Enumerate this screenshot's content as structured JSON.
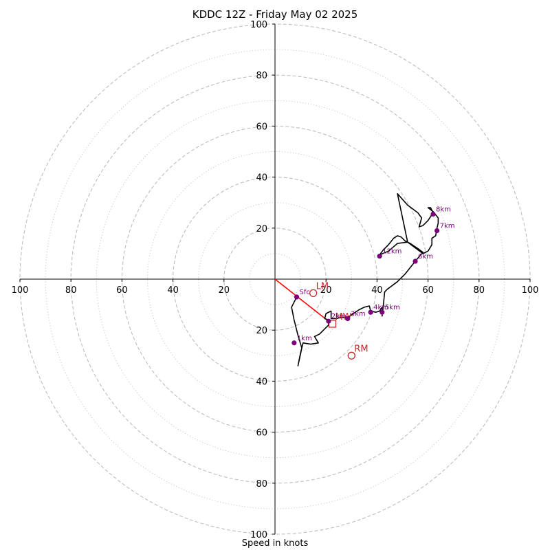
{
  "chart_data": {
    "type": "hodograph",
    "title": "KDDC 12Z - Friday May 02 2025",
    "xlabel": "Speed in knots",
    "xlim": [
      -100,
      100
    ],
    "ylim": [
      -100,
      100
    ],
    "rings_major": [
      20,
      40,
      60,
      80,
      100
    ],
    "rings_minor": [
      10,
      30,
      50,
      70,
      90
    ],
    "x_ticks": [
      {
        "v": -100,
        "label": "100"
      },
      {
        "v": -80,
        "label": "80"
      },
      {
        "v": -60,
        "label": "60"
      },
      {
        "v": -40,
        "label": "40"
      },
      {
        "v": -20,
        "label": "20"
      },
      {
        "v": 20,
        "label": "20"
      },
      {
        "v": 40,
        "label": "40"
      },
      {
        "v": 60,
        "label": "60"
      },
      {
        "v": 80,
        "label": "80"
      },
      {
        "v": 100,
        "label": "100"
      }
    ],
    "y_ticks": [
      {
        "v": 100,
        "label": "100"
      },
      {
        "v": 80,
        "label": "80"
      },
      {
        "v": 60,
        "label": "60"
      },
      {
        "v": 40,
        "label": "40"
      },
      {
        "v": 20,
        "label": "20"
      },
      {
        "v": -20,
        "label": "20"
      },
      {
        "v": -40,
        "label": "40"
      },
      {
        "v": -60,
        "label": "60"
      },
      {
        "v": -80,
        "label": "80"
      },
      {
        "v": -100,
        "label": "100"
      }
    ],
    "trace": [
      [
        8.5,
        -7
      ],
      [
        6.5,
        -11
      ],
      [
        7.5,
        -16
      ],
      [
        9,
        -22
      ],
      [
        10.5,
        -27
      ],
      [
        9,
        -34
      ],
      [
        10,
        -29
      ],
      [
        11,
        -25
      ],
      [
        14,
        -25.5
      ],
      [
        17,
        -25
      ],
      [
        15.5,
        -22.5
      ],
      [
        17.5,
        -21.5
      ],
      [
        19,
        -20
      ],
      [
        21,
        -18
      ],
      [
        21,
        -16
      ],
      [
        19.5,
        -15.5
      ],
      [
        20,
        -13.5
      ],
      [
        22,
        -12.5
      ],
      [
        22,
        -15.5
      ],
      [
        24,
        -15.5
      ],
      [
        26,
        -15
      ],
      [
        28.5,
        -15
      ],
      [
        30,
        -14
      ],
      [
        33,
        -12
      ],
      [
        35,
        -11
      ],
      [
        37,
        -10.5
      ],
      [
        37.5,
        -12.5
      ],
      [
        39.5,
        -13
      ],
      [
        41,
        -12.5
      ],
      [
        42,
        -11
      ],
      [
        42,
        -14.5
      ],
      [
        42.5,
        -10
      ],
      [
        43,
        -5
      ],
      [
        44,
        -4
      ],
      [
        48,
        -1
      ],
      [
        51,
        2
      ],
      [
        55,
        7
      ],
      [
        58,
        10.5
      ],
      [
        56,
        12
      ],
      [
        53,
        14
      ],
      [
        51,
        15
      ],
      [
        49.5,
        16.5
      ],
      [
        48,
        17
      ],
      [
        46.5,
        16
      ],
      [
        44.5,
        13.5
      ],
      [
        42.5,
        11.5
      ],
      [
        41,
        9.5
      ],
      [
        44.5,
        11
      ],
      [
        48,
        14
      ],
      [
        52,
        14.5
      ],
      [
        56,
        11.5
      ],
      [
        58,
        10
      ],
      [
        60,
        11
      ],
      [
        61.5,
        13.5
      ],
      [
        61.5,
        16
      ],
      [
        63,
        17
      ],
      [
        63.5,
        20
      ],
      [
        64,
        22
      ],
      [
        64,
        24
      ],
      [
        62,
        26.5
      ],
      [
        60,
        28
      ],
      [
        61,
        28
      ],
      [
        62,
        26
      ],
      [
        60,
        23
      ],
      [
        58,
        21
      ],
      [
        56.5,
        20.5
      ],
      [
        57.5,
        24
      ],
      [
        56,
        26
      ],
      [
        52,
        29
      ],
      [
        48,
        33.5
      ],
      [
        52,
        14.5
      ],
      [
        55,
        12.5
      ],
      [
        58,
        10.5
      ]
    ],
    "height_markers": [
      {
        "label": "Sfc",
        "u": 8.5,
        "v": -7
      },
      {
        "label": "1km",
        "u": 7.5,
        "v": -25
      },
      {
        "label": "2km",
        "u": 21,
        "v": -16.5
      },
      {
        "label": "3km",
        "u": 28.5,
        "v": -15.5
      },
      {
        "label": "4km",
        "u": 37.5,
        "v": -13
      },
      {
        "label": "5km",
        "u": 42,
        "v": -13
      },
      {
        "label": "6km",
        "u": 55,
        "v": 7
      },
      {
        "label": "7km",
        "u": 63.5,
        "v": 19
      },
      {
        "label": "8km",
        "u": 62,
        "v": 25.5
      },
      {
        "label": "12km",
        "u": 41,
        "v": 9
      }
    ],
    "storm_motion": [
      {
        "label": "LM",
        "u": 15,
        "v": -5.5,
        "symbol": "circle"
      },
      {
        "label": "RM",
        "u": 30,
        "v": -30,
        "symbol": "circle"
      },
      {
        "label": "MW",
        "u": 22.5,
        "v": -17.5,
        "symbol": "square"
      }
    ],
    "shear_line": {
      "from": [
        0,
        0
      ],
      "to": [
        21,
        -16.5
      ]
    },
    "colors": {
      "trace": "#000000",
      "marker": "#7a007a",
      "storm": "#c62828",
      "shear": "#ff0000",
      "ring": "#bdbdbd",
      "axis": "#000000"
    }
  }
}
